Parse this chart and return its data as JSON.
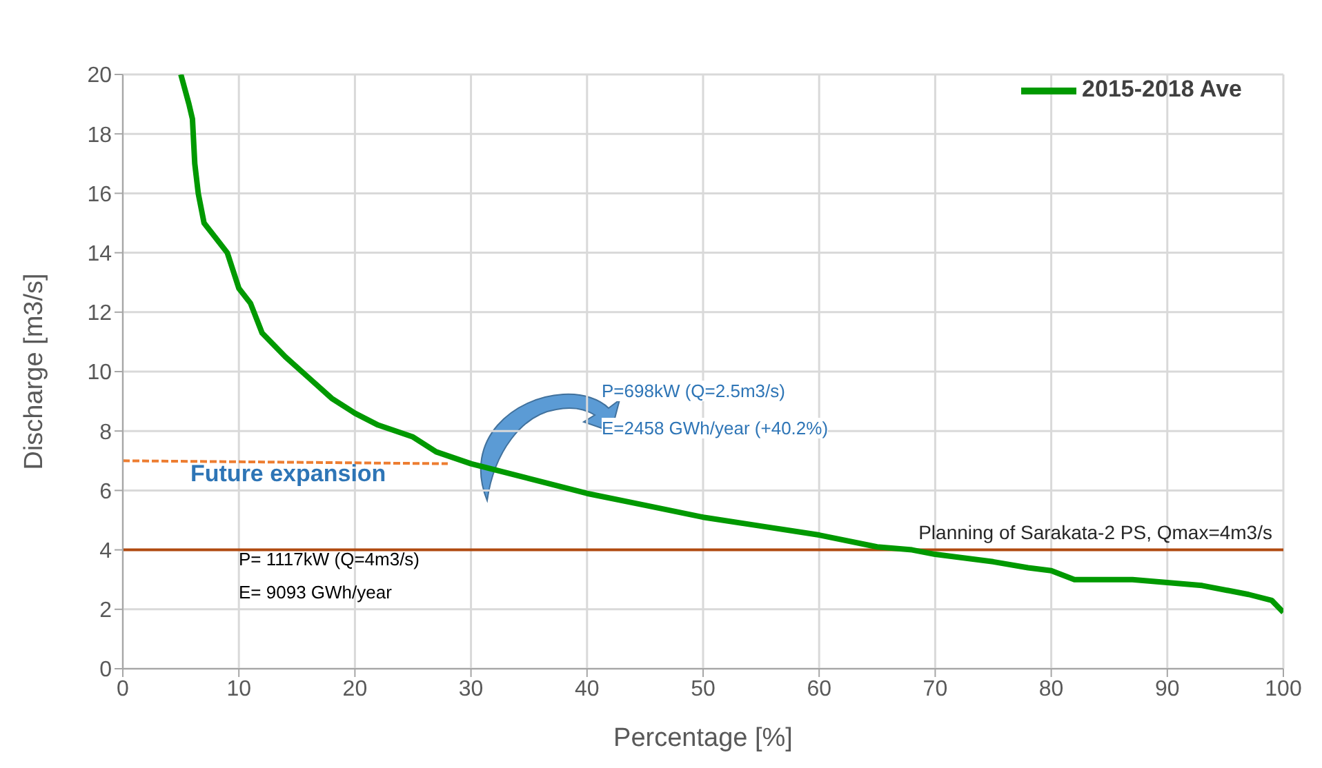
{
  "chart_data": {
    "type": "line",
    "xlabel": "Percentage [%]",
    "ylabel": "Discharge [m3/s]",
    "xlim": [
      0,
      100
    ],
    "xticks": [
      0,
      10,
      20,
      30,
      40,
      50,
      60,
      70,
      80,
      90,
      100
    ],
    "ylim": [
      0,
      20
    ],
    "yticks": [
      0,
      2,
      4,
      6,
      8,
      10,
      12,
      14,
      16,
      18,
      20
    ],
    "grid": true,
    "legend": "top right",
    "marker": "none",
    "series": [
      {
        "name": "2015-2018 Ave",
        "color": "#009900",
        "line_style": "solid",
        "x": [
          5,
          5.7,
          6,
          6.2,
          6.5,
          7,
          8,
          9,
          10,
          11,
          12,
          14,
          16,
          18,
          20,
          22,
          25,
          27,
          30,
          35,
          40,
          45,
          50,
          55,
          60,
          65,
          68,
          70,
          75,
          78,
          80,
          82,
          87,
          90,
          93,
          97,
          99,
          100
        ],
        "values": [
          20,
          19,
          18.5,
          17,
          16,
          15,
          14.5,
          14,
          12.8,
          12.3,
          11.3,
          10.5,
          9.8,
          9.1,
          8.6,
          8.2,
          7.8,
          7.3,
          6.9,
          6.4,
          5.9,
          5.5,
          5.1,
          4.8,
          4.5,
          4.1,
          4,
          3.85,
          3.6,
          3.4,
          3.3,
          3,
          3,
          2.9,
          2.8,
          2.5,
          2.3,
          1.9
        ]
      },
      {
        "color": "#ed7d31",
        "line_style": "dashed",
        "x": [
          0,
          28
        ],
        "values": [
          7,
          6.9
        ]
      }
    ],
    "ref_lines": [
      {
        "axis": "y",
        "value": 4,
        "label": "Planning of Sarakata-2 PS, Qmax=4m3/s",
        "color": "#b04a10"
      }
    ],
    "annotations": [
      "Future expansion",
      "P=698kW (Q=2.5m3/s)",
      "E=2458 GWh/year (+40.2%)",
      "P= 1117kW (Q=4m3/s)",
      "E= 9093 GWh/year"
    ]
  }
}
